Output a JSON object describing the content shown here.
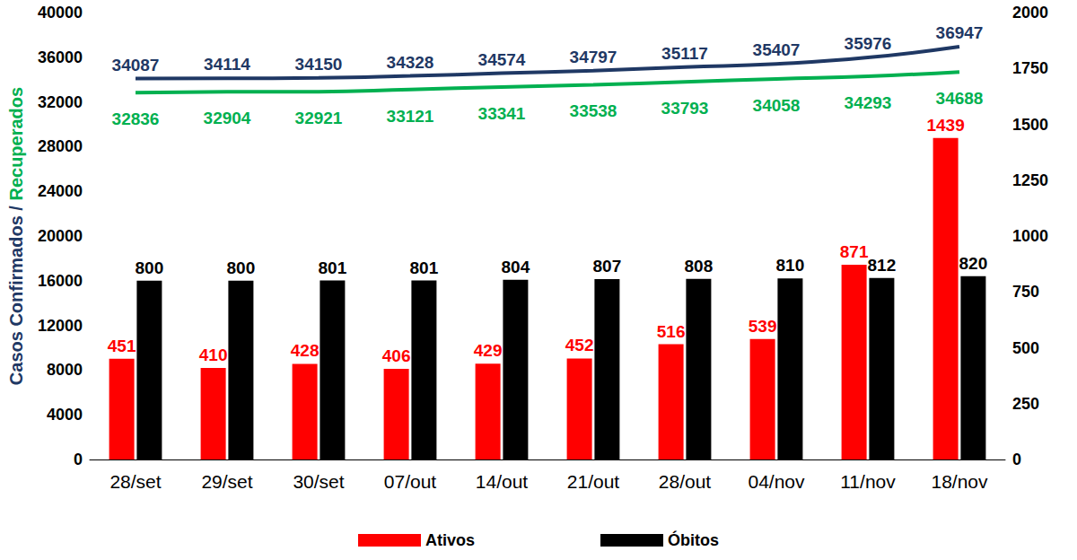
{
  "chart_data": {
    "type": "bar",
    "ylabel": "Casos Confirmados / Recuperados",
    "categories": [
      "28/set",
      "29/set",
      "30/set",
      "07/out",
      "14/out",
      "21/out",
      "28/out",
      "04/nov",
      "11/nov",
      "18/nov"
    ],
    "series": [
      {
        "name": "Ativos",
        "type": "bar",
        "axis": "y2",
        "color": "#ff0000",
        "values": [
          451,
          410,
          428,
          406,
          429,
          452,
          516,
          539,
          871,
          1439
        ]
      },
      {
        "name": "Óbitos",
        "type": "bar",
        "axis": "y2",
        "color": "#000000",
        "values": [
          800,
          800,
          801,
          801,
          804,
          807,
          808,
          810,
          812,
          820
        ]
      },
      {
        "name": "Casos Confirmados",
        "type": "line",
        "color": "#1f3864",
        "values": [
          34087,
          34114,
          34150,
          34328,
          34574,
          34797,
          35117,
          35407,
          35976,
          36947
        ]
      },
      {
        "name": "Recuperados",
        "type": "line",
        "color": "#00b050",
        "values": [
          32836,
          32904,
          32921,
          33121,
          33341,
          33538,
          33793,
          34058,
          34293,
          34688
        ]
      }
    ],
    "ylim": [
      0,
      40000
    ],
    "yticks": [
      0,
      4000,
      8000,
      12000,
      16000,
      20000,
      24000,
      28000,
      32000,
      36000,
      40000
    ],
    "y2lim": [
      0,
      2000
    ],
    "y2ticks": [
      0,
      250,
      500,
      750,
      1000,
      1250,
      1500,
      1750,
      2000
    ],
    "grid": false,
    "legend": "bottom",
    "data_labels": true
  }
}
